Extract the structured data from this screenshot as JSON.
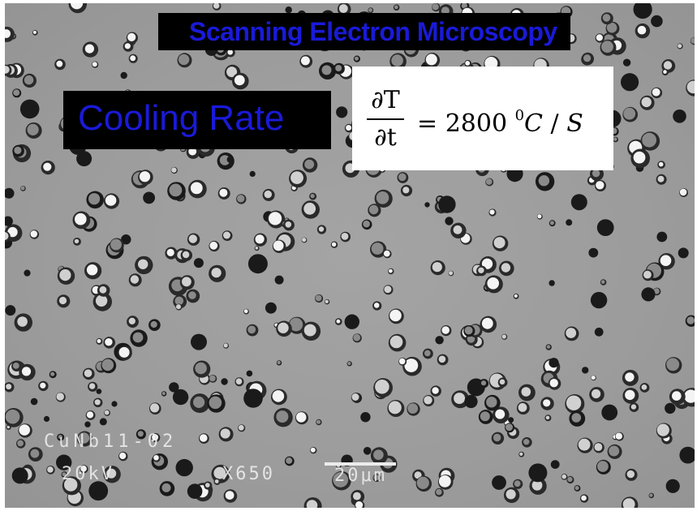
{
  "slide": {
    "title": "Scanning Electron Microscopy",
    "cooling_label": "Cooling Rate",
    "formula": {
      "numerator": "∂T",
      "denominator": "∂t",
      "equals": "=",
      "value": "2800",
      "exponent": "0",
      "unit_c": "C",
      "slash": " / ",
      "unit_s": "S"
    }
  },
  "micrograph": {
    "sample_label": "CuNb11-02",
    "voltage": "20kV",
    "magnification": "X650",
    "scale_label": "20μm"
  },
  "colors": {
    "title_text": "#1a1ad8",
    "banner_bg": "#000000",
    "micrograph_bg": "#9c9c9c"
  }
}
